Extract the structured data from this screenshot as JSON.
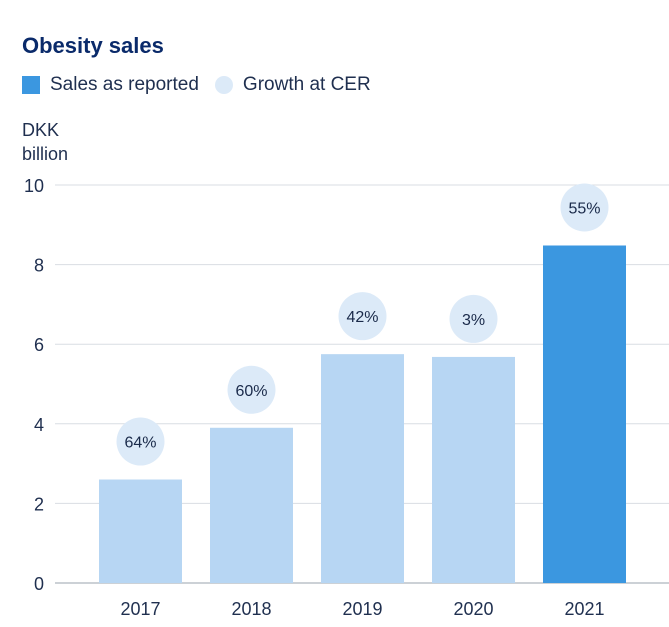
{
  "chart_data": {
    "type": "bar",
    "title": "Obesity sales",
    "legend": [
      "Sales as reported",
      "Growth at CER"
    ],
    "ylabel_line1": "DKK",
    "ylabel_line2": "billion",
    "ylim": [
      0,
      10
    ],
    "yticks": [
      0,
      2,
      4,
      6,
      8,
      10
    ],
    "categories": [
      "2017",
      "2018",
      "2019",
      "2020",
      "2021"
    ],
    "values": [
      2.6,
      3.9,
      5.75,
      5.68,
      8.48
    ],
    "growth_labels": [
      "64%",
      "60%",
      "42%",
      "3%",
      "55%"
    ],
    "highlight_index": 4,
    "colors": {
      "bar": "#b7d6f3",
      "highlight": "#3b97e0",
      "bubble": "#dceaf8",
      "grid": "#d9dde3",
      "text": "#1f2f4f"
    }
  }
}
